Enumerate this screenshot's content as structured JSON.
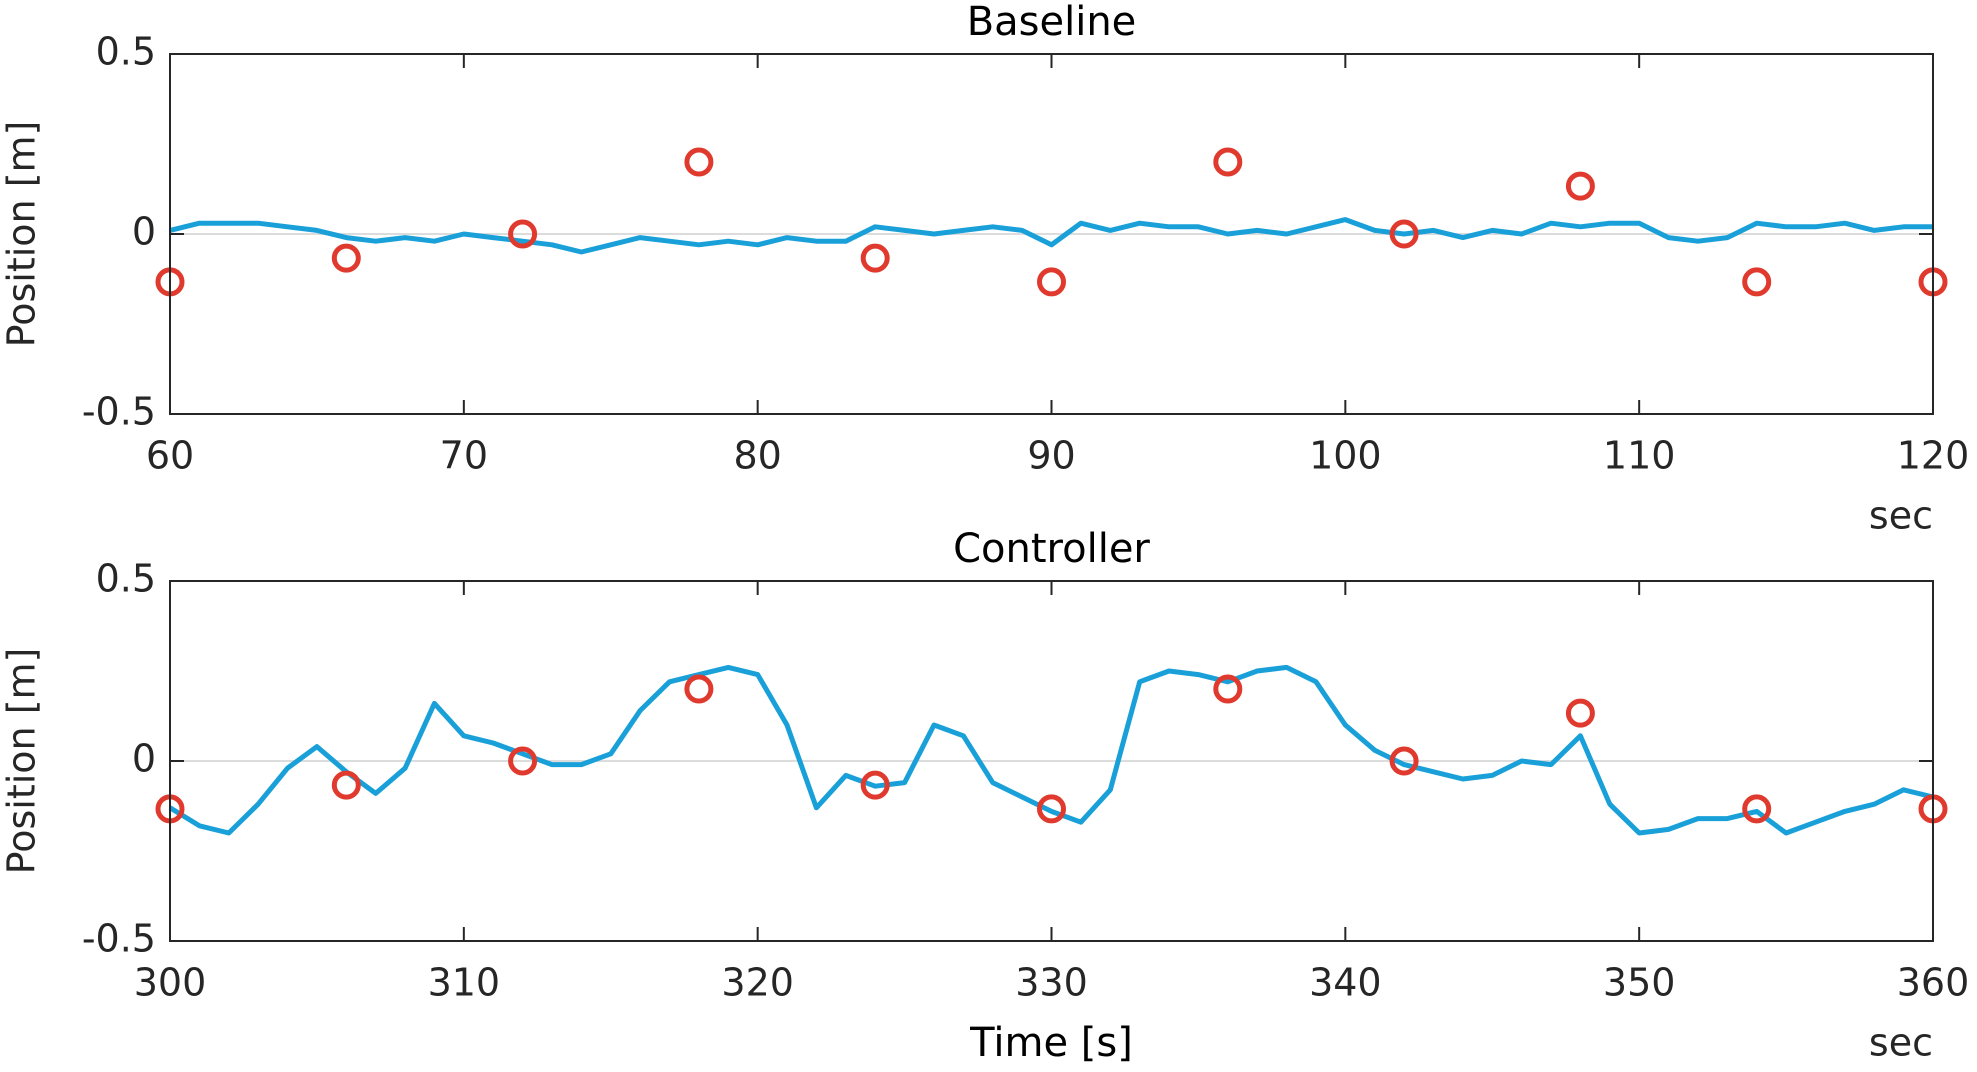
{
  "chart_data": [
    {
      "type": "line",
      "title": "Baseline",
      "ylabel": "Position [m]",
      "x_unit": "sec",
      "xlim": [
        60,
        120
      ],
      "xticks": [
        60,
        70,
        80,
        90,
        100,
        110,
        120
      ],
      "ylim": [
        -0.5,
        0.5
      ],
      "yticks": [
        -0.5,
        0,
        0.5
      ],
      "zero_line": true,
      "series": [
        {
          "style": "line",
          "color": "#1aa0d8",
          "x": [
            60,
            61,
            62,
            63,
            64,
            65,
            66,
            67,
            68,
            69,
            70,
            71,
            72,
            73,
            74,
            75,
            76,
            77,
            78,
            79,
            80,
            81,
            82,
            83,
            84,
            85,
            86,
            87,
            88,
            89,
            90,
            91,
            92,
            93,
            94,
            95,
            96,
            97,
            98,
            99,
            100,
            101,
            102,
            103,
            104,
            105,
            106,
            107,
            108,
            109,
            110,
            111,
            112,
            113,
            114,
            115,
            116,
            117,
            118,
            119,
            120
          ],
          "values": [
            0.01,
            0.03,
            0.03,
            0.03,
            0.02,
            0.01,
            -0.01,
            -0.02,
            -0.01,
            -0.02,
            0.0,
            -0.01,
            -0.02,
            -0.03,
            -0.05,
            -0.03,
            -0.01,
            -0.02,
            -0.03,
            -0.02,
            -0.03,
            -0.01,
            -0.02,
            -0.02,
            0.02,
            0.01,
            0.0,
            0.01,
            0.02,
            0.01,
            -0.03,
            0.03,
            0.01,
            0.03,
            0.02,
            0.02,
            0.0,
            0.01,
            0.0,
            0.02,
            0.04,
            0.01,
            0.0,
            0.01,
            -0.01,
            0.01,
            0.0,
            0.03,
            0.02,
            0.03,
            0.03,
            -0.01,
            -0.02,
            -0.01,
            0.03,
            0.02,
            0.02,
            0.03,
            0.01,
            0.02,
            0.02
          ]
        },
        {
          "style": "markers",
          "color": "#e03a2e",
          "x": [
            60,
            66,
            72,
            78,
            84,
            90,
            96,
            102,
            108,
            114,
            120
          ],
          "values": [
            -0.133,
            -0.067,
            0,
            0.2,
            -0.067,
            -0.133,
            0.2,
            0,
            0.133,
            -0.133,
            -0.133
          ]
        }
      ]
    },
    {
      "type": "line",
      "title": "Controller",
      "ylabel": "Position [m]",
      "xlabel": "Time [s]",
      "x_unit": "sec",
      "xlim": [
        300,
        360
      ],
      "xticks": [
        300,
        310,
        320,
        330,
        340,
        350,
        360
      ],
      "ylim": [
        -0.5,
        0.5
      ],
      "yticks": [
        -0.5,
        0,
        0.5
      ],
      "zero_line": true,
      "series": [
        {
          "style": "line",
          "color": "#1aa0d8",
          "x": [
            300,
            301,
            302,
            303,
            304,
            305,
            306,
            307,
            308,
            309,
            310,
            311,
            312,
            313,
            314,
            315,
            316,
            317,
            318,
            319,
            320,
            321,
            322,
            323,
            324,
            325,
            326,
            327,
            328,
            329,
            330,
            331,
            332,
            333,
            334,
            335,
            336,
            337,
            338,
            339,
            340,
            341,
            342,
            343,
            344,
            345,
            346,
            347,
            348,
            349,
            350,
            351,
            352,
            353,
            354,
            355,
            356,
            357,
            358,
            359,
            360
          ],
          "values": [
            -0.13,
            -0.18,
            -0.2,
            -0.12,
            -0.02,
            0.04,
            -0.03,
            -0.09,
            -0.02,
            0.16,
            0.07,
            0.05,
            0.02,
            -0.01,
            -0.01,
            0.02,
            0.14,
            0.22,
            0.24,
            0.26,
            0.24,
            0.1,
            -0.13,
            -0.04,
            -0.07,
            -0.06,
            0.1,
            0.07,
            -0.06,
            -0.1,
            -0.14,
            -0.17,
            -0.08,
            0.22,
            0.25,
            0.24,
            0.22,
            0.25,
            0.26,
            0.22,
            0.1,
            0.03,
            -0.01,
            -0.03,
            -0.05,
            -0.04,
            0.0,
            -0.01,
            0.07,
            -0.12,
            -0.2,
            -0.19,
            -0.16,
            -0.16,
            -0.14,
            -0.2,
            -0.17,
            -0.14,
            -0.12,
            -0.08,
            -0.1
          ]
        },
        {
          "style": "markers",
          "color": "#e03a2e",
          "x": [
            300,
            306,
            312,
            318,
            324,
            330,
            336,
            342,
            348,
            354,
            360
          ],
          "values": [
            -0.133,
            -0.067,
            0,
            0.2,
            -0.067,
            -0.133,
            0.2,
            0,
            0.133,
            -0.133,
            -0.133
          ]
        }
      ]
    }
  ]
}
